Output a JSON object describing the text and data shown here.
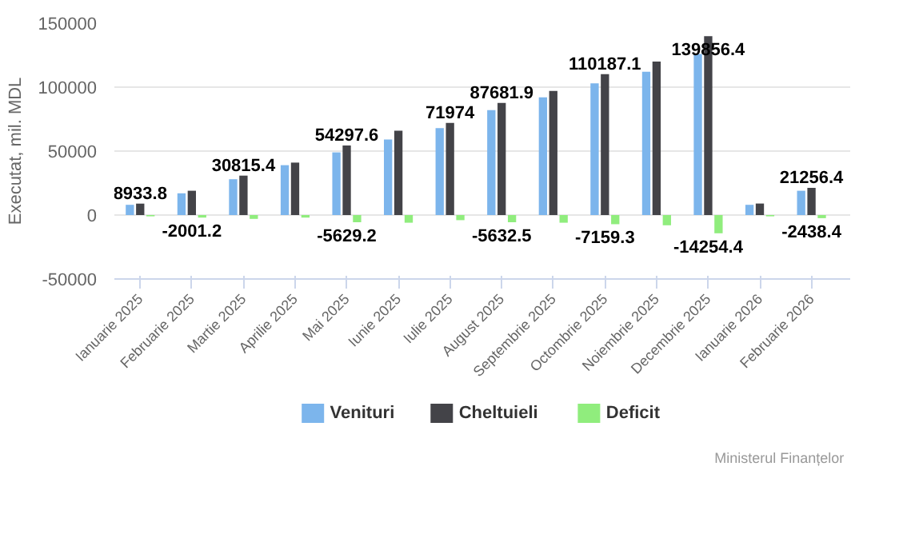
{
  "chart_data": {
    "type": "bar",
    "ylabel": "Executat, mil. MDL",
    "categories": [
      "Ianuarie 2025",
      "Februarie 2025",
      "Martie 2025",
      "Aprilie 2025",
      "Mai 2025",
      "Iunie 2025",
      "Iulie 2025",
      "August 2025",
      "Septembrie 2025",
      "Octombrie 2025",
      "Noiembrie 2025",
      "Decembrie 2025",
      "Ianuarie 2026",
      "Februarie 2026"
    ],
    "series": [
      {
        "name": "Venituri",
        "color": "#7cb5ec",
        "values": [
          8000,
          17000,
          28000,
          39000,
          49000,
          59000,
          68000,
          82000,
          92000,
          103000,
          112000,
          126000,
          8000,
          19000
        ]
      },
      {
        "name": "Cheltuieli",
        "color": "#434348",
        "values": [
          8933.8,
          19000,
          30815.4,
          41000,
          54297.6,
          66000,
          71974,
          87681.9,
          97000,
          110187.1,
          120000,
          139856.4,
          9000,
          21256.4
        ],
        "value_labels": [
          "8933.8",
          null,
          "30815.4",
          null,
          "54297.6",
          null,
          "71974",
          "87681.9",
          null,
          "110187.1",
          null,
          "139856.4",
          null,
          "21256.4"
        ]
      },
      {
        "name": "Deficit",
        "color": "#90ed7d",
        "values": [
          -1000,
          -2001.2,
          -3000,
          -2000,
          -5629.2,
          -6000,
          -4000,
          -5632.5,
          -6000,
          -7159.3,
          -8000,
          -14254.4,
          -1000,
          -2438.4
        ],
        "value_labels": [
          null,
          "-2001.2",
          null,
          null,
          "-5629.2",
          null,
          null,
          "-5632.5",
          null,
          "-7159.3",
          null,
          "-14254.4",
          null,
          "-2438.4"
        ]
      }
    ],
    "ylim": [
      -50000,
      150000
    ],
    "yticks": [
      -50000,
      0,
      50000,
      100000,
      150000
    ],
    "grid": "y",
    "legend": "bottom",
    "annotations": [
      "Ministerul Finanțelor"
    ]
  }
}
